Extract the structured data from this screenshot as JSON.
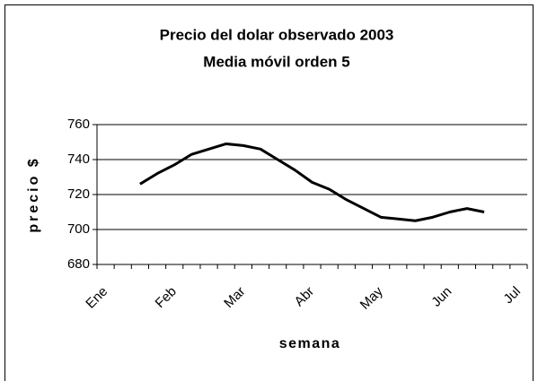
{
  "chart_data": {
    "type": "line",
    "title": "Precio del dolar observado 2003",
    "subtitle": "Media móvil orden 5",
    "x_label": "semana",
    "y_label": "precio $",
    "categories": [
      "Ene",
      null,
      null,
      null,
      "Feb",
      null,
      null,
      null,
      "Mar",
      null,
      null,
      null,
      "Abr",
      null,
      null,
      null,
      "May",
      null,
      null,
      null,
      "Jun",
      null,
      null,
      null,
      "Jul"
    ],
    "values": [
      null,
      null,
      726,
      732,
      737,
      743,
      746,
      749,
      748,
      746,
      740,
      734,
      727,
      723,
      717,
      712,
      707,
      706,
      705,
      707,
      710,
      712,
      710,
      null,
      null
    ],
    "color": "#000000",
    "ylim": [
      680,
      760
    ],
    "yticks": [
      680,
      700,
      720,
      740,
      760
    ],
    "grid": true
  }
}
